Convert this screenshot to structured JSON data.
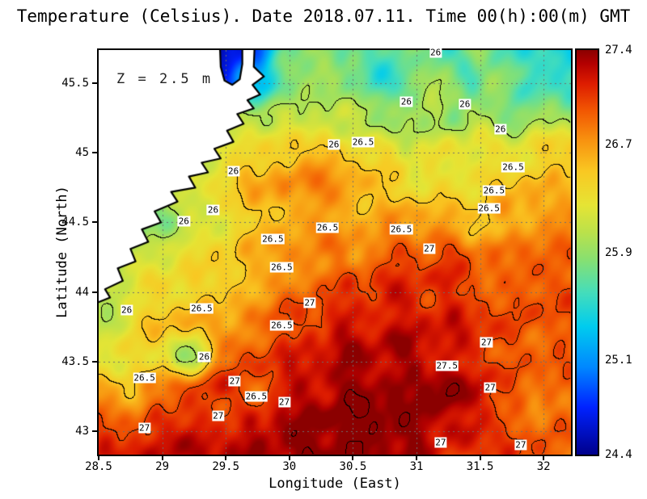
{
  "chart_data": {
    "type": "heatmap",
    "title": "Temperature (Celsius). Date 2018.07.11. Time 00(h):00(m) GMT",
    "xlabel": "Longitude (East)",
    "ylabel": "Latitude (North)",
    "annotation": "Z = 2.5 m",
    "x_range": [
      28.5,
      32.215
    ],
    "y_range": [
      42.83,
      45.74
    ],
    "x_ticks": [
      {
        "v": 28.5,
        "label": "28.5"
      },
      {
        "v": 29,
        "label": "29"
      },
      {
        "v": 29.5,
        "label": "29.5"
      },
      {
        "v": 30,
        "label": "30"
      },
      {
        "v": 30.5,
        "label": "30.5"
      },
      {
        "v": 31,
        "label": "31"
      },
      {
        "v": 31.5,
        "label": "31.5"
      },
      {
        "v": 32,
        "label": "32"
      }
    ],
    "y_ticks": [
      {
        "v": 43,
        "label": "43"
      },
      {
        "v": 43.5,
        "label": "43.5"
      },
      {
        "v": 44,
        "label": "44"
      },
      {
        "v": 44.5,
        "label": "44.5"
      },
      {
        "v": 45,
        "label": "45"
      },
      {
        "v": 45.5,
        "label": "45.5"
      }
    ],
    "colorbar": {
      "min": 24.4,
      "max": 27.4,
      "ticks": [
        {
          "v": 27.4,
          "label": "27.4"
        },
        {
          "v": 26.7,
          "label": "26.7"
        },
        {
          "v": 25.9,
          "label": "25.9"
        },
        {
          "v": 25.1,
          "label": "25.1"
        },
        {
          "v": 24.4,
          "label": "24.4"
        }
      ]
    },
    "colormap": [
      {
        "v": 24.4,
        "c": "#00008b"
      },
      {
        "v": 24.75,
        "c": "#0022ff"
      },
      {
        "v": 25.05,
        "c": "#0088ff"
      },
      {
        "v": 25.35,
        "c": "#00ccee"
      },
      {
        "v": 25.6,
        "c": "#44ddbb"
      },
      {
        "v": 25.85,
        "c": "#88e070"
      },
      {
        "v": 26.05,
        "c": "#bbe14a"
      },
      {
        "v": 26.25,
        "c": "#e6e434"
      },
      {
        "v": 26.5,
        "c": "#f9c822"
      },
      {
        "v": 26.72,
        "c": "#f89510"
      },
      {
        "v": 26.95,
        "c": "#f25702"
      },
      {
        "v": 27.15,
        "c": "#dd1c00"
      },
      {
        "v": 27.3,
        "c": "#b30000"
      },
      {
        "v": 27.4,
        "c": "#8b0000"
      }
    ],
    "contour_levels": [
      26,
      26.5,
      27,
      27.5
    ],
    "contour_labels": [
      {
        "text": "26",
        "lon": 31.15,
        "lat": 45.72
      },
      {
        "text": "26",
        "lon": 30.92,
        "lat": 45.37
      },
      {
        "text": "26",
        "lon": 31.38,
        "lat": 45.35
      },
      {
        "text": "26",
        "lon": 31.66,
        "lat": 45.17
      },
      {
        "text": "26",
        "lon": 30.35,
        "lat": 45.06
      },
      {
        "text": "26.5",
        "lon": 30.58,
        "lat": 45.08
      },
      {
        "text": "26.5",
        "lon": 31.76,
        "lat": 44.9
      },
      {
        "text": "26",
        "lon": 29.56,
        "lat": 44.87
      },
      {
        "text": "26.5",
        "lon": 31.61,
        "lat": 44.73
      },
      {
        "text": "26.5",
        "lon": 31.57,
        "lat": 44.6
      },
      {
        "text": "26",
        "lon": 29.4,
        "lat": 44.59
      },
      {
        "text": "26",
        "lon": 29.17,
        "lat": 44.51
      },
      {
        "text": "26.5",
        "lon": 30.3,
        "lat": 44.46
      },
      {
        "text": "26.5",
        "lon": 30.88,
        "lat": 44.45
      },
      {
        "text": "26.5",
        "lon": 29.87,
        "lat": 44.38
      },
      {
        "text": "27",
        "lon": 31.1,
        "lat": 44.31
      },
      {
        "text": "26.5",
        "lon": 29.94,
        "lat": 44.18
      },
      {
        "text": "26",
        "lon": 28.72,
        "lat": 43.87
      },
      {
        "text": "26.5",
        "lon": 29.31,
        "lat": 43.88
      },
      {
        "text": "27",
        "lon": 30.16,
        "lat": 43.92
      },
      {
        "text": "26.5",
        "lon": 29.94,
        "lat": 43.76
      },
      {
        "text": "27",
        "lon": 31.55,
        "lat": 43.64
      },
      {
        "text": "26",
        "lon": 29.33,
        "lat": 43.53
      },
      {
        "text": "27.5",
        "lon": 31.24,
        "lat": 43.47
      },
      {
        "text": "26.5",
        "lon": 28.86,
        "lat": 43.38
      },
      {
        "text": "27",
        "lon": 29.57,
        "lat": 43.36
      },
      {
        "text": "26.5",
        "lon": 29.74,
        "lat": 43.25
      },
      {
        "text": "27",
        "lon": 29.96,
        "lat": 43.21
      },
      {
        "text": "27",
        "lon": 31.58,
        "lat": 43.31
      },
      {
        "text": "27",
        "lon": 29.44,
        "lat": 43.11
      },
      {
        "text": "27",
        "lon": 28.86,
        "lat": 43.02
      },
      {
        "text": "27",
        "lon": 31.19,
        "lat": 42.92
      },
      {
        "text": "27",
        "lon": 31.82,
        "lat": 42.9
      }
    ],
    "temperature_grid": {
      "lon_min": 28.5,
      "lon_max": 32.2,
      "lat_min": 42.8,
      "lat_max": 45.75,
      "nx": 16,
      "ny": 13,
      "order": "rows north to south, columns west to east, degrees Celsius",
      "values": [
        [
          26.0,
          26.0,
          25.9,
          25.6,
          24.5,
          24.9,
          25.7,
          25.9,
          25.7,
          25.6,
          25.9,
          25.6,
          25.9,
          25.7,
          25.5,
          25.4
        ],
        [
          26.0,
          26.0,
          26.0,
          25.8,
          24.7,
          25.3,
          25.8,
          26.0,
          25.9,
          25.5,
          25.8,
          26.0,
          25.6,
          25.9,
          25.5,
          25.6
        ],
        [
          26.1,
          26.1,
          26.1,
          26.0,
          25.9,
          26.0,
          26.1,
          26.0,
          26.1,
          25.9,
          26.0,
          25.9,
          26.1,
          25.8,
          26.0,
          25.9
        ],
        [
          26.2,
          26.2,
          26.2,
          26.2,
          26.3,
          26.4,
          26.5,
          26.6,
          26.4,
          26.3,
          26.2,
          26.2,
          26.3,
          26.2,
          26.4,
          26.5
        ],
        [
          26.0,
          25.9,
          26.0,
          26.1,
          26.4,
          26.6,
          26.7,
          26.8,
          26.7,
          26.5,
          26.4,
          26.3,
          26.4,
          26.5,
          26.6,
          26.5
        ],
        [
          25.8,
          25.7,
          25.9,
          26.1,
          26.3,
          26.5,
          26.6,
          26.7,
          26.6,
          26.6,
          26.7,
          26.6,
          26.5,
          26.6,
          26.7,
          26.8
        ],
        [
          25.9,
          26.0,
          26.2,
          26.3,
          26.4,
          26.6,
          26.7,
          26.8,
          26.8,
          26.9,
          27.0,
          27.0,
          26.9,
          26.8,
          26.9,
          26.9
        ],
        [
          26.1,
          26.2,
          26.4,
          26.4,
          26.5,
          26.6,
          26.8,
          26.9,
          27.0,
          27.1,
          27.1,
          27.1,
          27.0,
          26.9,
          27.0,
          27.0
        ],
        [
          26.0,
          26.3,
          26.5,
          26.6,
          26.6,
          26.8,
          27.0,
          27.1,
          27.2,
          27.2,
          27.2,
          27.2,
          27.1,
          27.0,
          26.9,
          27.0
        ],
        [
          26.2,
          26.4,
          26.3,
          25.9,
          26.9,
          27.0,
          27.1,
          27.2,
          27.3,
          27.3,
          27.3,
          27.2,
          27.1,
          27.0,
          26.9,
          27.0
        ],
        [
          26.6,
          26.5,
          26.8,
          27.0,
          27.1,
          26.9,
          27.2,
          27.3,
          27.4,
          27.4,
          27.3,
          27.5,
          27.2,
          27.0,
          26.8,
          26.9
        ],
        [
          27.0,
          27.0,
          27.1,
          27.2,
          27.0,
          27.2,
          27.3,
          27.4,
          27.4,
          27.5,
          27.4,
          27.3,
          27.2,
          27.0,
          26.8,
          26.9
        ],
        [
          27.1,
          27.2,
          27.2,
          27.3,
          27.3,
          27.4,
          27.4,
          27.5,
          27.5,
          27.4,
          27.3,
          27.1,
          27.0,
          27.1,
          27.0,
          26.9
        ]
      ]
    },
    "coastline_polygon": [
      [
        28.4,
        45.85
      ],
      [
        29.45,
        45.85
      ],
      [
        29.46,
        45.62
      ],
      [
        29.49,
        45.52
      ],
      [
        29.55,
        45.49
      ],
      [
        29.61,
        45.53
      ],
      [
        29.63,
        45.64
      ],
      [
        29.63,
        45.85
      ],
      [
        29.73,
        45.85
      ],
      [
        29.72,
        45.62
      ],
      [
        29.8,
        45.55
      ],
      [
        29.71,
        45.49
      ],
      [
        29.77,
        45.42
      ],
      [
        29.67,
        45.38
      ],
      [
        29.72,
        45.32
      ],
      [
        29.59,
        45.28
      ],
      [
        29.64,
        45.21
      ],
      [
        29.51,
        45.16
      ],
      [
        29.56,
        45.08
      ],
      [
        29.41,
        45.03
      ],
      [
        29.46,
        44.96
      ],
      [
        29.31,
        44.93
      ],
      [
        29.36,
        44.86
      ],
      [
        29.21,
        44.83
      ],
      [
        29.26,
        44.75
      ],
      [
        29.07,
        44.72
      ],
      [
        29.12,
        44.65
      ],
      [
        28.94,
        44.58
      ],
      [
        28.99,
        44.5
      ],
      [
        28.84,
        44.45
      ],
      [
        28.89,
        44.36
      ],
      [
        28.75,
        44.31
      ],
      [
        28.79,
        44.22
      ],
      [
        28.65,
        44.17
      ],
      [
        28.69,
        44.08
      ],
      [
        28.55,
        44.02
      ],
      [
        28.59,
        43.96
      ],
      [
        28.4,
        43.89
      ]
    ],
    "land_color": "#ffffff",
    "coast_color": "#000000",
    "grid_line_color": "#6e6e6e"
  }
}
